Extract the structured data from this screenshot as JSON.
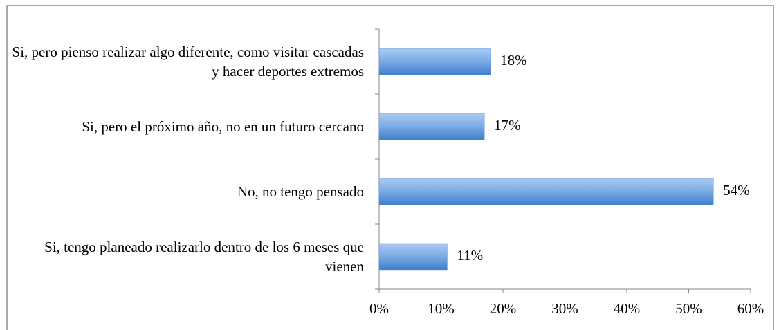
{
  "chart_data": {
    "type": "bar",
    "orientation": "horizontal",
    "categories": [
      "Si, pero pienso realizar algo diferente, como visitar cascadas y hacer deportes extremos",
      "Si, pero el próximo año, no en un futuro cercano",
      "No, no tengo pensado",
      "Si, tengo planeado realizarlo dentro de los 6 meses que vienen"
    ],
    "values": [
      18,
      17,
      54,
      11
    ],
    "value_labels": [
      "18%",
      "17%",
      "54%",
      "11%"
    ],
    "color": "#5b93d8",
    "xlim": [
      0,
      60
    ],
    "xticks": [
      {
        "value": 0,
        "label": "0%"
      },
      {
        "value": 10,
        "label": "10%"
      },
      {
        "value": 20,
        "label": "20%"
      },
      {
        "value": 30,
        "label": "30%"
      },
      {
        "value": 40,
        "label": "40%"
      },
      {
        "value": 50,
        "label": "50%"
      },
      {
        "value": 60,
        "label": "60%"
      }
    ],
    "grid": false
  }
}
